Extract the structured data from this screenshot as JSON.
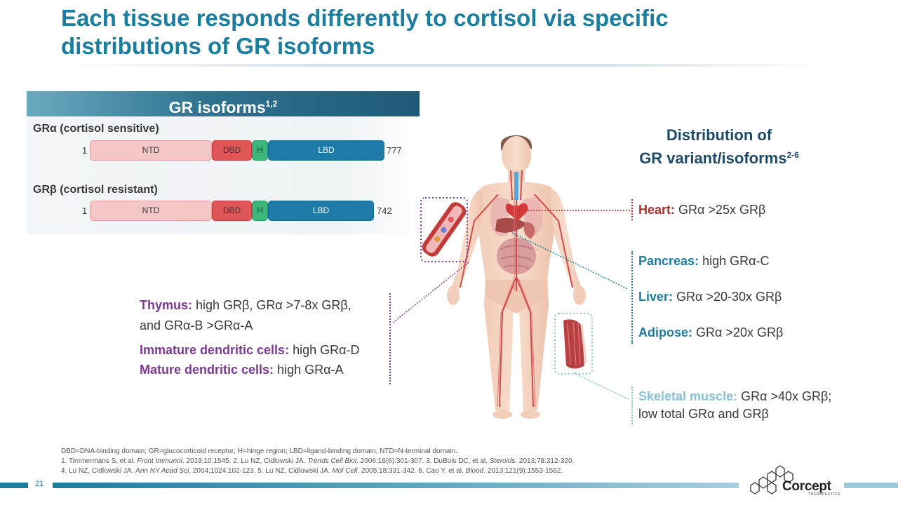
{
  "title": {
    "line1": "Each tissue responds differently to cortisol via specific",
    "line2": "distributions of GR isoforms"
  },
  "isoforms": {
    "header": "GR isoforms",
    "header_sup": "1,2",
    "alpha": {
      "label": "GRα (cortisol sensitive)",
      "start": "1",
      "end": "777",
      "domains": [
        "NTD",
        "DBD",
        "H",
        "LBD"
      ]
    },
    "beta": {
      "label": "GRβ (cortisol resistant)",
      "start": "1",
      "end": "742",
      "domains": [
        "NTD",
        "DBD",
        "H",
        "LBD"
      ]
    }
  },
  "distribution": {
    "title_line1": "Distribution of",
    "title_line2": "GR variant/isoforms",
    "title_sup": "2-6"
  },
  "organs": {
    "heart": {
      "name": "Heart:",
      "text": " GRα >25x GRβ"
    },
    "pancreas": {
      "name": "Pancreas:",
      "text": " high GRα-C"
    },
    "liver": {
      "name": "Liver:",
      "text": " GRα >20-30x GRβ"
    },
    "adipose": {
      "name": "Adipose:",
      "text": " GRα >20x GRβ"
    },
    "skeletal": {
      "name": "Skeletal muscle:",
      "text": " GRα >40x GRβ;",
      "line2": "low total GRα and GRβ"
    },
    "thymus": {
      "name": "Thymus:",
      "text": " high GRβ, GRα >7-8x GRβ,",
      "line2": "and GRα-B >GRα-A"
    },
    "immature_dc": {
      "name": "Immature dendritic cells:",
      "text": " high GRα-D"
    },
    "mature_dc": {
      "name": "Mature dendritic cells:",
      "text": " high GRα-A"
    }
  },
  "footnotes": {
    "abbrev": "DBD=DNA-binding domain; GR=glucocorticoid receptor; H=hinge region; LBD=ligand-binding domain; NTD=N-terminal domain.",
    "ref1_a": "1. Timmermans S, et al. ",
    "ref1_j": "Front Immunol",
    "ref1_b": ". 2019;10:1545. 2. Lu NZ, Cidlowski JA. ",
    "ref2_j": "Trends Cell Biol",
    "ref2_b": ". 2006;16(6):301-307. 3. DuBois DC, et al. ",
    "ref3_j": "Steroids",
    "ref3_b": ". 2013;78:312-320.",
    "ref4_a": "4. Lu NZ, Cidlowski JA. ",
    "ref4_j": "Ann NY Acad Sci",
    "ref4_b": ". 2004;1024:102-123. 5. Lu NZ, Cidlowski JA. ",
    "ref5_j": "Mol Cell",
    "ref5_b": ". 2005;18:331-342. 6. Cao Y, et al. ",
    "ref6_j": "Blood",
    "ref6_b": ". 2013;121(9):1553-1562."
  },
  "page_number": "21",
  "logo": {
    "name": "Corcept",
    "sub": "THERAPEUTICS"
  },
  "colors": {
    "title": "#1d7d9e",
    "heart": "#b52a2a",
    "blue_organs": "#1d7d9e",
    "skeletal": "#8ac2d6",
    "purple": "#7a3a96",
    "ntd": "#f5c6c6",
    "dbd": "#e05555",
    "hinge": "#3cb67a",
    "lbd": "#1e7ba8"
  },
  "icons": [
    "human-body-illustration",
    "blood-vessel-icon",
    "muscle-fiber-icon",
    "corcept-logo-icon"
  ]
}
